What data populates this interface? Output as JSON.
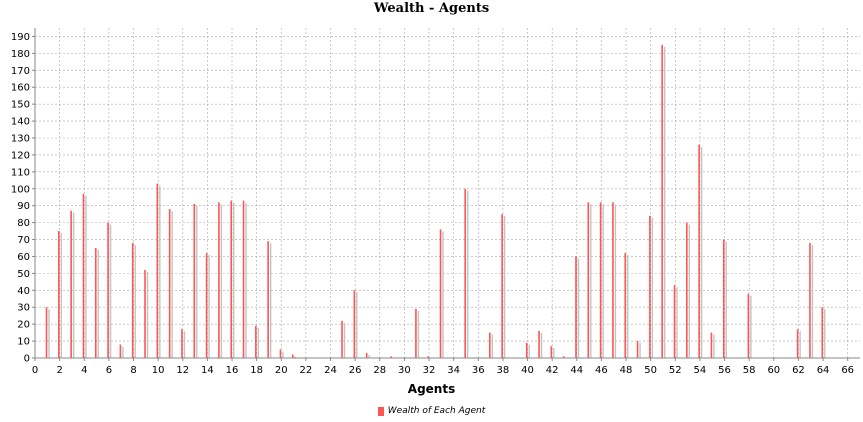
{
  "chart_data": {
    "type": "bar",
    "title": "Wealth - Agents",
    "xlabel": "Agents",
    "ylabel": "",
    "xlim": [
      0,
      67
    ],
    "ylim": [
      0,
      195
    ],
    "x_ticks": [
      0,
      2,
      4,
      6,
      8,
      10,
      12,
      14,
      16,
      18,
      20,
      22,
      24,
      26,
      28,
      30,
      32,
      34,
      36,
      38,
      40,
      42,
      44,
      46,
      48,
      50,
      52,
      54,
      56,
      58,
      60,
      62,
      64,
      66
    ],
    "y_ticks": [
      0,
      10,
      20,
      30,
      40,
      50,
      60,
      70,
      80,
      90,
      100,
      110,
      120,
      130,
      140,
      150,
      160,
      170,
      180,
      190
    ],
    "grid": true,
    "legend": "bottom-center",
    "series": [
      {
        "name": "Wealth of Each Agent",
        "color": "#ff5555",
        "x": [
          1,
          2,
          3,
          4,
          5,
          6,
          7,
          8,
          9,
          10,
          11,
          12,
          13,
          14,
          15,
          16,
          17,
          18,
          19,
          20,
          21,
          22,
          23,
          24,
          25,
          26,
          27,
          28,
          29,
          30,
          31,
          32,
          33,
          34,
          35,
          36,
          37,
          38,
          39,
          40,
          41,
          42,
          43,
          44,
          45,
          46,
          47,
          48,
          49,
          50,
          51,
          52,
          53,
          54,
          55,
          56,
          57,
          58,
          59,
          60,
          61,
          62,
          63,
          64
        ],
        "values": [
          30,
          75,
          87,
          97,
          65,
          80,
          8,
          68,
          52,
          103,
          88,
          17,
          91,
          62,
          92,
          93,
          93,
          19,
          69,
          5,
          2,
          0,
          0,
          0,
          22,
          40,
          3,
          0,
          1,
          0,
          29,
          1,
          76,
          0,
          100,
          0,
          15,
          85,
          0,
          9,
          16,
          7,
          1,
          60,
          92,
          92,
          92,
          62,
          10,
          84,
          185,
          43,
          80,
          126,
          15,
          70,
          0,
          38,
          0,
          0,
          0,
          17,
          68,
          30
        ]
      }
    ]
  }
}
